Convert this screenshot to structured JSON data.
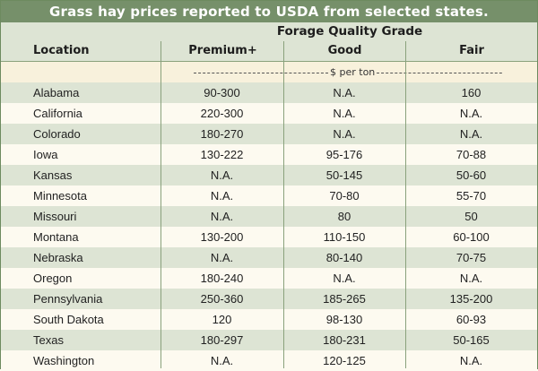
{
  "title": "Grass hay prices reported to USDA from selected states.",
  "header": {
    "group_label": "Forage Quality Grade",
    "location": "Location",
    "premium": "Premium+",
    "good": "Good",
    "fair": "Fair"
  },
  "unit_label": "$ per ton",
  "colors": {
    "title_bg": "#76906a",
    "stripe": "#dde4d4",
    "background": "#fdfaf0"
  },
  "rows": [
    {
      "location": "Alabama",
      "premium": "90-300",
      "good": "N.A.",
      "fair": "160"
    },
    {
      "location": "California",
      "premium": "220-300",
      "good": "N.A.",
      "fair": "N.A."
    },
    {
      "location": "Colorado",
      "premium": "180-270",
      "good": "N.A.",
      "fair": "N.A."
    },
    {
      "location": "Iowa",
      "premium": "130-222",
      "good": "95-176",
      "fair": "70-88"
    },
    {
      "location": "Kansas",
      "premium": "N.A.",
      "good": "50-145",
      "fair": "50-60"
    },
    {
      "location": "Minnesota",
      "premium": "N.A.",
      "good": "70-80",
      "fair": "55-70"
    },
    {
      "location": "Missouri",
      "premium": "N.A.",
      "good": "80",
      "fair": "50"
    },
    {
      "location": "Montana",
      "premium": "130-200",
      "good": "110-150",
      "fair": "60-100"
    },
    {
      "location": "Nebraska",
      "premium": "N.A.",
      "good": "80-140",
      "fair": "70-75"
    },
    {
      "location": "Oregon",
      "premium": "180-240",
      "good": "N.A.",
      "fair": "N.A."
    },
    {
      "location": "Pennsylvania",
      "premium": "250-360",
      "good": "185-265",
      "fair": "135-200"
    },
    {
      "location": "South Dakota",
      "premium": "120",
      "good": "98-130",
      "fair": "60-93"
    },
    {
      "location": "Texas",
      "premium": "180-297",
      "good": "180-231",
      "fair": "50-165"
    },
    {
      "location": "Washington",
      "premium": "N.A.",
      "good": "120-125",
      "fair": "N.A."
    }
  ]
}
